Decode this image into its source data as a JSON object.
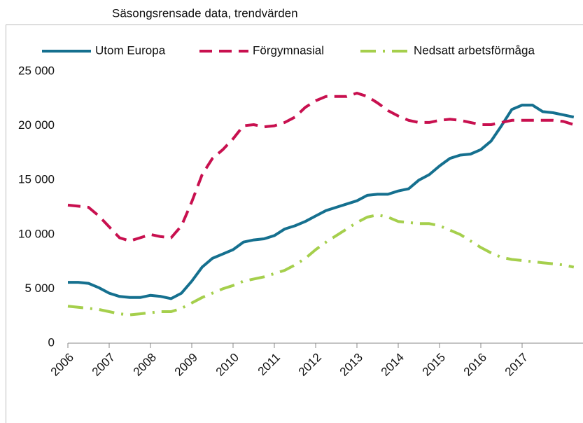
{
  "chart_data": {
    "type": "line",
    "title": "Säsongsrensade data, trendvärden",
    "categories": [
      "2006",
      null,
      null,
      null,
      "2007",
      null,
      null,
      null,
      "2008",
      null,
      null,
      null,
      "2009",
      null,
      null,
      null,
      "2010",
      null,
      null,
      null,
      "2011",
      null,
      null,
      null,
      "2012",
      null,
      null,
      null,
      "2013",
      null,
      null,
      null,
      "2014",
      null,
      null,
      null,
      "2015",
      null,
      null,
      null,
      "2016",
      null,
      null,
      null,
      "2017",
      null,
      null,
      null,
      null,
      null
    ],
    "series": [
      {
        "name": "Utom Europa",
        "color": "#15708f",
        "dash": "solid",
        "values": [
          5600,
          5600,
          5500,
          5100,
          4600,
          4300,
          4200,
          4200,
          4400,
          4300,
          4100,
          4600,
          5700,
          7000,
          7800,
          8200,
          8600,
          9300,
          9500,
          9600,
          9900,
          10500,
          10800,
          11200,
          11700,
          12200,
          12500,
          12800,
          13100,
          13600,
          13700,
          13700,
          14000,
          14200,
          15000,
          15500,
          16300,
          17000,
          17300,
          17400,
          17800,
          18600,
          20000,
          21500,
          21900,
          21900,
          21300,
          21200,
          21000,
          20800
        ]
      },
      {
        "name": "Förgymnasial",
        "color": "#c8104f",
        "dash": "dash",
        "values": [
          12700,
          12600,
          12500,
          11700,
          10700,
          9700,
          9400,
          9700,
          10000,
          9800,
          9700,
          10800,
          13000,
          15500,
          17000,
          17800,
          18800,
          20000,
          20100,
          19900,
          20000,
          20300,
          20800,
          21700,
          22300,
          22700,
          22700,
          22700,
          23000,
          22700,
          22100,
          21400,
          20900,
          20500,
          20300,
          20300,
          20500,
          20600,
          20500,
          20300,
          20100,
          20100,
          20300,
          20500,
          20500,
          20500,
          20500,
          20500,
          20400,
          20100
        ]
      },
      {
        "name": "Nedsatt arbetsförmåga",
        "color": "#a5cf4c",
        "dash": "dashdot",
        "values": [
          3400,
          3300,
          3200,
          3100,
          2900,
          2700,
          2600,
          2700,
          2800,
          2900,
          2900,
          3200,
          3700,
          4200,
          4600,
          5000,
          5300,
          5700,
          5900,
          6100,
          6400,
          6700,
          7200,
          7800,
          8600,
          9300,
          9900,
          10500,
          11100,
          11600,
          11800,
          11600,
          11200,
          11100,
          11000,
          11000,
          10800,
          10400,
          10000,
          9400,
          8800,
          8300,
          7900,
          7700,
          7600,
          7500,
          7400,
          7300,
          7200,
          7000
        ]
      }
    ],
    "ylim": [
      0,
      25000
    ],
    "yticks": [
      0,
      {
        "value": 5000,
        "label": "5 000"
      },
      {
        "value": 10000,
        "label": "10 000"
      },
      {
        "value": 15000,
        "label": "15 000"
      },
      {
        "value": 20000,
        "label": "20 000"
      },
      {
        "value": 25000,
        "label": "25 000"
      }
    ],
    "grid": false,
    "legend": "top"
  }
}
